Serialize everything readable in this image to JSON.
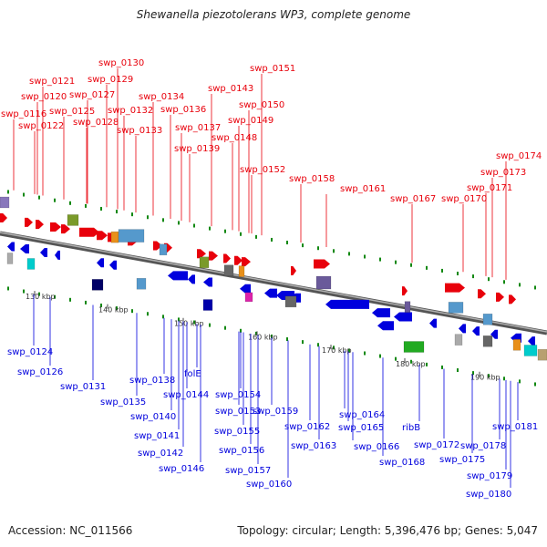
{
  "title": "Shewanella piezotolerans WP3, complete genome",
  "accession": "Accession: NC_011566",
  "topology": "Topology: circular; Length: 5,396,476 bp; Genes: 5,047",
  "colors": {
    "forward": "#e8000b",
    "reverse": "#0000dd",
    "backbone": "#888888"
  },
  "top_labels": [
    "swp_0116",
    "swp_0120",
    "swp_0121",
    "swp_0122",
    "swp_0125",
    "swp_0127",
    "swp_0128",
    "swp_0129",
    "swp_0130",
    "swp_0132",
    "swp_0133",
    "swp_0134",
    "swp_0136",
    "swp_0137",
    "swp_0139",
    "swp_0143",
    "swp_0148",
    "swp_0149",
    "swp_0150",
    "swp_0151",
    "swp_0152",
    "swp_0158",
    "swp_0161",
    "swp_0167",
    "swp_0170",
    "swp_0171",
    "swp_0173",
    "swp_0174"
  ],
  "bottom_labels": [
    "swp_0124",
    "swp_0126",
    "swp_0131",
    "swp_0135",
    "swp_0138",
    "swp_0140",
    "swp_0141",
    "swp_0142",
    "swp_0144",
    "folE",
    "swp_0146",
    "swp_0153",
    "swp_0154",
    "swp_0155",
    "swp_0156",
    "swp_0157",
    "swp_0159",
    "swp_0160",
    "swp_0162",
    "swp_0163",
    "swp_0164",
    "swp_0165",
    "swp_0166",
    "swp_0168",
    "ribB",
    "swp_0172",
    "swp_0175",
    "swp_0178",
    "swp_0179",
    "swp_0180",
    "swp_0181"
  ],
  "ticks": [
    "130 kbp",
    "140 kbp",
    "150 kbp",
    "160 kbp",
    "170 kbp",
    "180 kbp",
    "190 kbp"
  ]
}
